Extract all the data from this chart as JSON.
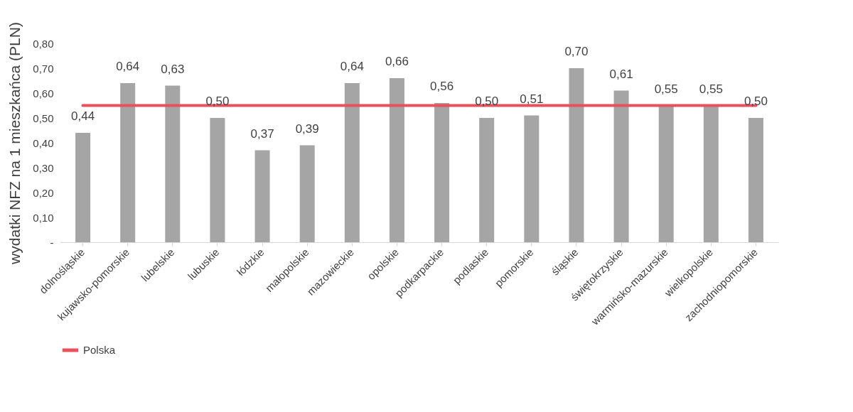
{
  "chart_data": {
    "type": "bar",
    "ylabel": "wydatki NFZ na 1 mieszkańca (PLN)",
    "categories": [
      "dolnośląskie",
      "kujawsko-pomorskie",
      "lubelskie",
      "lubuskie",
      "łódzkie",
      "małopolskie",
      "mazowieckie",
      "opolskie",
      "podkarpackie",
      "podlaskie",
      "pomorskie",
      "śląskie",
      "świętokrzyskie",
      "warmińsko-mazurskie",
      "wielkopolskie",
      "zachodniopomorskie"
    ],
    "series": [
      {
        "color": "#a5a5a5",
        "values": [
          0.44,
          0.64,
          0.63,
          0.5,
          0.37,
          0.39,
          0.64,
          0.66,
          0.56,
          0.5,
          0.51,
          0.7,
          0.61,
          0.55,
          0.55,
          0.5
        ],
        "value_labels": [
          "0,44",
          "0,64",
          "0,63",
          "0,50",
          "0,37",
          "0,39",
          "0,64",
          "0,66",
          "0,56",
          "0,50",
          "0,51",
          "0,70",
          "0,61",
          "0,55",
          "0,55",
          "0,50"
        ]
      },
      {
        "type": "line",
        "name": "Polska",
        "color": "#e8505b",
        "values": [
          0.55,
          0.55,
          0.55,
          0.55,
          0.55,
          0.55,
          0.55,
          0.55,
          0.55,
          0.55,
          0.55,
          0.55,
          0.55,
          0.55,
          0.55,
          0.55
        ]
      }
    ],
    "ylim": [
      0,
      0.8
    ],
    "yticks": [
      {
        "value": 0,
        "label": "-"
      },
      {
        "value": 0.1,
        "label": "0,10"
      },
      {
        "value": 0.2,
        "label": "0,20"
      },
      {
        "value": 0.3,
        "label": "0,30"
      },
      {
        "value": 0.4,
        "label": "0,40"
      },
      {
        "value": 0.5,
        "label": "0,50"
      },
      {
        "value": 0.6,
        "label": "0,60"
      },
      {
        "value": 0.7,
        "label": "0,70"
      },
      {
        "value": 0.8,
        "label": "0,80"
      }
    ],
    "legend": "bottom"
  }
}
